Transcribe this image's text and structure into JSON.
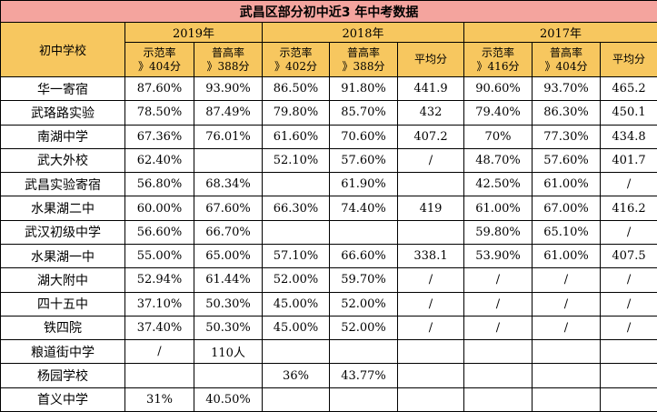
{
  "colors": {
    "title_bg": "#f4a49e",
    "header_bg": "#f7c75f",
    "border": "#000000",
    "cell_bg": "#ffffff"
  },
  "chart_data": {
    "type": "table",
    "title": "武昌区部分初中近3 年中考数据",
    "school_header": "初中学校",
    "year_groups": [
      {
        "label": "2019年",
        "columns": [
          {
            "name": "示范率",
            "threshold": "》404分"
          },
          {
            "name": "普高率",
            "threshold": "》388分"
          }
        ]
      },
      {
        "label": "2018年",
        "columns": [
          {
            "name": "示范率",
            "threshold": "》402分"
          },
          {
            "name": "普高率",
            "threshold": "》388分"
          },
          {
            "name": "平均分",
            "threshold": ""
          }
        ]
      },
      {
        "label": "2017年",
        "columns": [
          {
            "name": "示范率",
            "threshold": "》416分"
          },
          {
            "name": "普高率",
            "threshold": "》404分"
          },
          {
            "name": "平均分",
            "threshold": ""
          }
        ]
      }
    ],
    "rows": [
      {
        "school": "华一寄宿",
        "values": [
          "87.60%",
          "93.90%",
          "86.50%",
          "91.80%",
          "441.9",
          "90.60%",
          "93.70%",
          "465.2"
        ]
      },
      {
        "school": "武珞路实验",
        "values": [
          "78.50%",
          "87.49%",
          "79.80%",
          "85.70%",
          "432",
          "79.40%",
          "86.30%",
          "450.1"
        ]
      },
      {
        "school": "南湖中学",
        "values": [
          "67.36%",
          "76.01%",
          "61.60%",
          "70.60%",
          "407.2",
          "70%",
          "77.30%",
          "434.8"
        ]
      },
      {
        "school": "武大外校",
        "values": [
          "62.40%",
          "",
          "52.10%",
          "57.60%",
          "/",
          "48.70%",
          "57.60%",
          "401.7"
        ]
      },
      {
        "school": "武昌实验寄宿",
        "values": [
          "56.80%",
          "68.34%",
          "",
          "61.90%",
          "",
          "42.50%",
          "61.00%",
          "/"
        ]
      },
      {
        "school": "水果湖二中",
        "values": [
          "60.00%",
          "67.60%",
          "66.30%",
          "74.40%",
          "419",
          "61.00%",
          "67.00%",
          "416.2"
        ]
      },
      {
        "school": "武汉初级中学",
        "values": [
          "56.60%",
          "66.70%",
          "",
          "",
          "",
          "59.80%",
          "65.10%",
          "/"
        ]
      },
      {
        "school": "水果湖一中",
        "values": [
          "55.00%",
          "65.00%",
          "57.10%",
          "66.60%",
          "338.1",
          "53.90%",
          "61.00%",
          "407.5"
        ]
      },
      {
        "school": "湖大附中",
        "values": [
          "52.94%",
          "61.44%",
          "52.00%",
          "59.70%",
          "/",
          "/",
          "/",
          "/"
        ]
      },
      {
        "school": "四十五中",
        "values": [
          "37.10%",
          "50.30%",
          "45.00%",
          "52.00%",
          "/",
          "/",
          "/",
          "/"
        ]
      },
      {
        "school": "铁四院",
        "values": [
          "37.40%",
          "50.30%",
          "45.00%",
          "52.00%",
          "/",
          "/",
          "/",
          "/"
        ]
      },
      {
        "school": "粮道街中学",
        "values": [
          "/",
          "110人",
          "",
          "",
          "",
          "",
          "",
          ""
        ]
      },
      {
        "school": "杨园学校",
        "values": [
          "",
          "",
          "36%",
          "43.77%",
          "",
          "",
          "",
          ""
        ]
      },
      {
        "school": "首义中学",
        "values": [
          "31%",
          "40.50%",
          "",
          "",
          "",
          "",
          "",
          ""
        ]
      }
    ]
  }
}
